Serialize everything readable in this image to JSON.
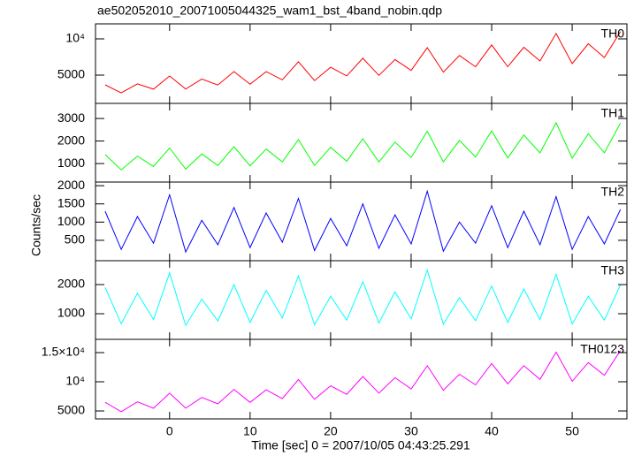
{
  "title": "ae502052010_20071005044325_wam1_bst_4band_nobin.qdp",
  "ylabel": "Counts/sec",
  "x_axis": {
    "label": "Time [sec] 0 = 2007/10/05 04:43:25.291",
    "xlim": [
      -9.2,
      56.8
    ],
    "xticks": [
      0,
      10,
      20,
      30,
      40,
      50
    ],
    "x": [
      -8,
      -6,
      -4,
      -2,
      0,
      2,
      4,
      6,
      8,
      10,
      12,
      14,
      16,
      18,
      20,
      22,
      24,
      26,
      28,
      30,
      32,
      34,
      36,
      38,
      40,
      42,
      44,
      46,
      48,
      50,
      52,
      54,
      56
    ]
  },
  "chart_data": [
    {
      "type": "line",
      "ylim": [
        1100,
        12070
      ],
      "yticks": [
        5000,
        {
          "value": 10000,
          "label": "10⁴"
        }
      ],
      "series": [
        {
          "name": "TH0",
          "color": "#ff0000",
          "values": [
            3660,
            2550,
            3790,
            3060,
            4880,
            3070,
            4460,
            3630,
            5490,
            3750,
            5470,
            4360,
            6840,
            4240,
            6080,
            4890,
            7330,
            4960,
            7150,
            5650,
            8790,
            5420,
            7710,
            6150,
            9160,
            6160,
            8840,
            6950,
            10740,
            6590,
            9330,
            7420,
            11000
          ]
        }
      ]
    },
    {
      "type": "line",
      "ylim": [
        180,
        3670
      ],
      "yticks": [
        1000,
        2000,
        3000
      ],
      "series": [
        {
          "name": "TH1",
          "color": "#00ff00",
          "values": [
            1400,
            722,
            1329,
            875,
            1688,
            751,
            1426,
            914,
            1750,
            897,
            1641,
            1075,
            2063,
            914,
            1726,
            1102,
            2100,
            1072,
            1954,
            1275,
            2438,
            1076,
            2026,
            1289,
            2450,
            1247,
            2266,
            1475,
            2813,
            1239,
            2326,
            1477,
            2800
          ]
        }
      ]
    },
    {
      "type": "line",
      "ylim": [
        -60,
        2100
      ],
      "yticks": [
        500,
        1000,
        1500,
        2000
      ],
      "series": [
        {
          "name": "TH2",
          "color": "#0000ff",
          "values": [
            1300,
            250,
            1150,
            420,
            1750,
            180,
            1050,
            380,
            1400,
            300,
            1250,
            450,
            1650,
            220,
            1100,
            350,
            1500,
            280,
            1200,
            400,
            1850,
            200,
            1000,
            420,
            1450,
            300,
            1300,
            380,
            1700,
            250,
            1150,
            400,
            1350
          ]
        }
      ]
    },
    {
      "type": "line",
      "ylim": [
        120,
        2820
      ],
      "yticks": [
        1000,
        2000
      ],
      "series": [
        {
          "name": "TH3",
          "color": "#00ffff",
          "values": [
            1900,
            650,
            1700,
            800,
            2400,
            600,
            1500,
            750,
            2000,
            700,
            1800,
            850,
            2300,
            620,
            1600,
            780,
            2100,
            680,
            1750,
            820,
            2500,
            640,
            1550,
            760,
            1950,
            700,
            1850,
            800,
            2350,
            650,
            1600,
            780,
            2000
          ]
        }
      ]
    },
    {
      "type": "line",
      "ylim": [
        3640,
        17270
      ],
      "yticks": [
        5000,
        {
          "value": 10000,
          "label": "10⁴"
        },
        {
          "value": 15000,
          "label": "1.5×10⁴"
        }
      ],
      "series": [
        {
          "name": "TH0123",
          "color": "#ff00ff",
          "values": [
            6490,
            4874,
            6566,
            5459,
            8048,
            5471,
            7320,
            6213,
            8703,
            6468,
            8628,
            7109,
            10391,
            7009,
            9308,
            7844,
            10915,
            8061,
            10691,
            8759,
            12735,
            8546,
            11295,
            9475,
            13128,
            9655,
            12753,
            10409,
            15079,
            10084,
            13283,
            11106,
            15340
          ]
        }
      ]
    }
  ]
}
